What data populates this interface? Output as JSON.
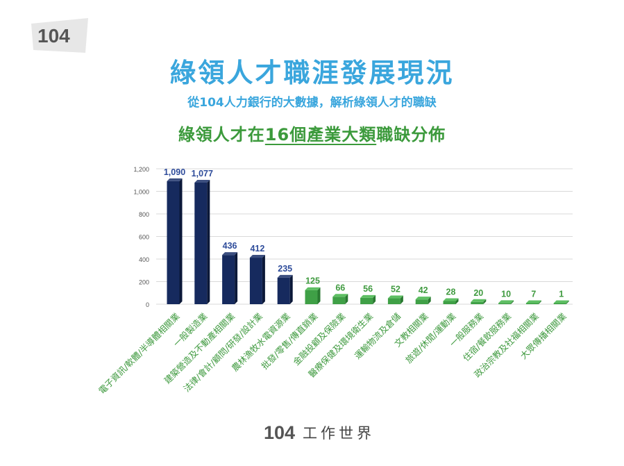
{
  "header": {
    "logo_text": "104",
    "title": "綠領人才職涯發展現況",
    "subtitle": "從104人力銀行的大數據，解析綠領人才的職缺",
    "chart_title_prefix": "綠領人才在",
    "chart_title_underlined": "16個產業大類",
    "chart_title_suffix": "職缺分佈"
  },
  "footer": {
    "logo_number": "104",
    "brand": "工作世界"
  },
  "colors": {
    "title_blue": "#3aa6dd",
    "chart_title_green": "#3c9a3c",
    "bar_navy": "#162a5e",
    "bar_green": "#3fa046",
    "label_navy": "#2d4b9a",
    "label_green": "#3f9a3f",
    "logo_bg": "#e7e7e7",
    "logo_accent": "#f08a1c"
  },
  "chart_data": {
    "type": "bar",
    "title": "綠領人才在16個產業大類職缺分佈",
    "xlabel": "",
    "ylabel": "",
    "ylim": [
      0,
      1200
    ],
    "yticks": [
      "0",
      "200",
      "400",
      "600",
      "800",
      "1,000",
      "1,200"
    ],
    "ytick_values": [
      0,
      200,
      400,
      600,
      800,
      1000,
      1200
    ],
    "grid": true,
    "legend": "none",
    "categories": [
      "電子資訊/軟體/半導體相關業",
      "一般製造業",
      "建築營造及不動產相關業",
      "法律/會計/顧問/研發/設計業",
      "農林漁牧水電資源業",
      "批發/零售/傳直銷業",
      "金融投顧及保險業",
      "醫療保健及環境衛生業",
      "運輸物流及倉儲",
      "文教相關業",
      "旅遊/休閒/運動業",
      "一般服務業",
      "住宿/餐飲服務業",
      "政治宗教及社福相關業",
      "大眾傳播相關業"
    ],
    "values": [
      1090,
      1077,
      436,
      412,
      235,
      125,
      66,
      56,
      52,
      42,
      28,
      20,
      10,
      7,
      1
    ],
    "value_labels": [
      "1,090",
      "1,077",
      "436",
      "412",
      "235",
      "125",
      "66",
      "56",
      "52",
      "42",
      "28",
      "20",
      "10",
      "7",
      "1"
    ],
    "highlight_count": 5
  }
}
